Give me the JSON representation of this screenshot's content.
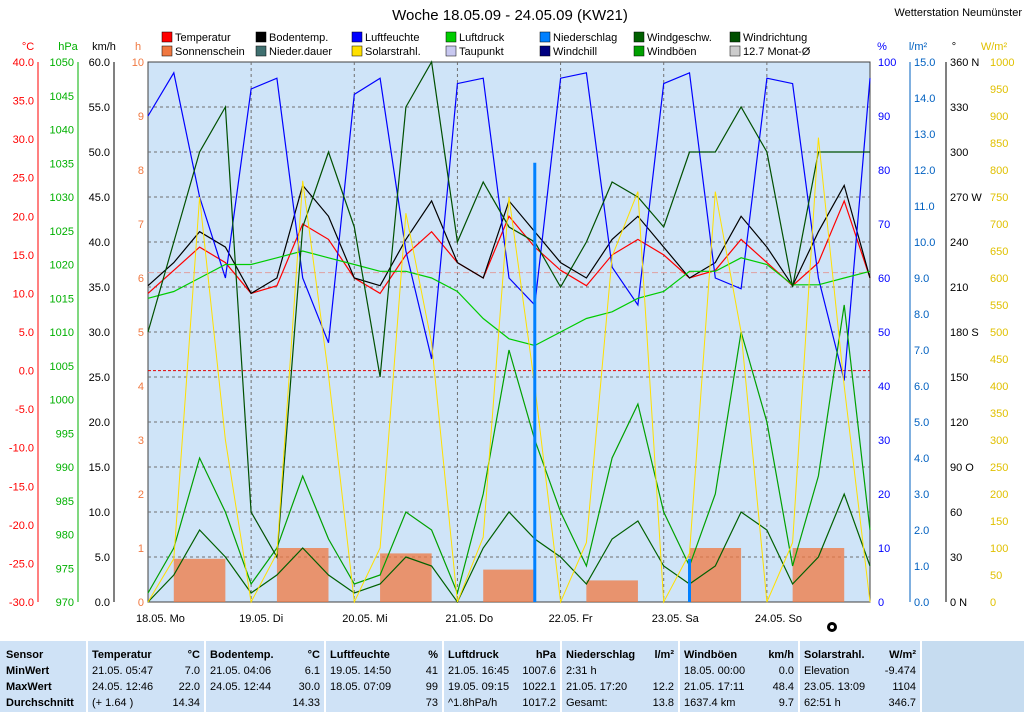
{
  "title": "Woche 18.05.09 - 24.05.09 (KW21)",
  "station": "Wetterstation Neumünster",
  "legend": {
    "row1": [
      {
        "label": "Temperatur",
        "color": "#ff0000"
      },
      {
        "label": "Bodentemp.",
        "color": "#000000"
      },
      {
        "label": "Luftfeuchte",
        "color": "#0000ff"
      },
      {
        "label": "Luftdruck",
        "color": "#00cc00"
      },
      {
        "label": "Niederschlag",
        "color": "#0080ff"
      },
      {
        "label": "Windgeschw.",
        "color": "#006000"
      },
      {
        "label": "Windrichtung",
        "color": "#005000"
      }
    ],
    "row2": [
      {
        "label": "Sonnenschein",
        "color": "#f07840"
      },
      {
        "label": "Nieder.dauer",
        "color": "#407070"
      },
      {
        "label": "Solarstrahl.",
        "color": "#ffe000"
      },
      {
        "label": "Taupunkt",
        "color": "#c8c8f0"
      },
      {
        "label": "Windchill",
        "color": "#000080"
      },
      {
        "label": "Windböen",
        "color": "#00a000"
      },
      {
        "label": "12.7 Monat-Ø",
        "color": "#cccccc"
      }
    ]
  },
  "axes": {
    "left": [
      {
        "unit": "°C",
        "color": "#ff0000",
        "ticks": [
          "40.0",
          "35.0",
          "30.0",
          "25.0",
          "20.0",
          "15.0",
          "10.0",
          "5.0",
          "0.0",
          "-5.0",
          "-10.0",
          "-15.0",
          "-20.0",
          "-25.0",
          "-30.0"
        ]
      },
      {
        "unit": "hPa",
        "color": "#00b000",
        "ticks": [
          "1050",
          "1045",
          "1040",
          "1035",
          "1030",
          "1025",
          "1020",
          "1015",
          "1010",
          "1005",
          "1000",
          "995",
          "990",
          "985",
          "980",
          "975",
          "970"
        ]
      },
      {
        "unit": "km/h",
        "color": "#000000",
        "ticks": [
          "60.0",
          "55.0",
          "50.0",
          "45.0",
          "40.0",
          "35.0",
          "30.0",
          "25.0",
          "20.0",
          "15.0",
          "10.0",
          "5.0",
          "0.0"
        ]
      },
      {
        "unit": "h",
        "color": "#f07840",
        "ticks": [
          "10",
          "9",
          "8",
          "7",
          "6",
          "5",
          "4",
          "3",
          "2",
          "1",
          "0"
        ]
      }
    ],
    "right": [
      {
        "unit": "%",
        "color": "#0000ff",
        "ticks": [
          "100",
          "90",
          "80",
          "70",
          "60",
          "50",
          "40",
          "30",
          "20",
          "10",
          "0"
        ]
      },
      {
        "unit": "l/m²",
        "color": "#0060c0",
        "ticks": [
          "15.0",
          "14.0",
          "13.0",
          "12.0",
          "11.0",
          "10.0",
          "9.0",
          "8.0",
          "7.0",
          "6.0",
          "5.0",
          "4.0",
          "3.0",
          "2.0",
          "1.0",
          "0.0"
        ]
      },
      {
        "unit": "°",
        "color": "#000000",
        "ticks": [
          "360 N",
          "330",
          "300",
          "270 W",
          "240",
          "210",
          "180 S",
          "150",
          "120",
          "90 O",
          "60",
          "30",
          "0 N"
        ]
      },
      {
        "unit": "W/m²",
        "color": "#e0c000",
        "ticks": [
          "1000",
          "950",
          "900",
          "850",
          "800",
          "750",
          "700",
          "650",
          "600",
          "550",
          "500",
          "450",
          "400",
          "350",
          "300",
          "250",
          "200",
          "150",
          "100",
          "50",
          "0"
        ]
      }
    ],
    "days": [
      "18.05. Mo",
      "19.05. Di",
      "20.05. Mi",
      "21.05. Do",
      "22.05. Fr",
      "23.05. Sa",
      "24.05. So"
    ]
  },
  "chart_data": {
    "type": "line",
    "title": "Woche 18.05.09 - 24.05.09 (KW21)",
    "x": [
      0,
      6,
      12,
      18,
      24,
      30,
      36,
      42,
      48,
      54,
      60,
      66,
      72,
      78,
      84,
      90,
      96,
      102,
      108,
      114,
      120,
      126,
      132,
      138,
      144,
      150,
      156,
      162,
      168
    ],
    "x_unit": "hours since 18.05. 00:00",
    "series": [
      {
        "name": "Temperatur",
        "unit": "°C",
        "values": [
          10,
          13,
          16,
          14,
          10,
          11,
          19,
          17,
          12,
          10,
          15,
          18,
          14,
          12,
          20,
          16,
          13,
          11,
          15,
          17,
          15,
          12,
          13,
          17,
          14,
          11,
          14,
          22,
          12
        ]
      },
      {
        "name": "Bodentemp.",
        "unit": "°C",
        "values": [
          11,
          14,
          18,
          16,
          10,
          12,
          24,
          20,
          12,
          11,
          17,
          22,
          14,
          12,
          22,
          18,
          14,
          12,
          17,
          20,
          16,
          12,
          14,
          20,
          16,
          11,
          18,
          24,
          12
        ]
      },
      {
        "name": "Luftfeuchte",
        "unit": "%",
        "values": [
          90,
          98,
          75,
          60,
          95,
          97,
          60,
          48,
          94,
          97,
          65,
          45,
          96,
          97,
          60,
          55,
          97,
          98,
          62,
          55,
          96,
          98,
          60,
          58,
          97,
          96,
          60,
          41,
          97
        ]
      },
      {
        "name": "Luftdruck",
        "unit": "hPa",
        "values": [
          1015,
          1016,
          1018,
          1020,
          1020,
          1021,
          1022,
          1021,
          1020,
          1019,
          1019,
          1018,
          1016,
          1012,
          1009,
          1008,
          1010,
          1012,
          1013,
          1015,
          1016,
          1019,
          1019,
          1021,
          1020,
          1017,
          1017,
          1018,
          1019
        ]
      },
      {
        "name": "Windgeschw.",
        "unit": "km/h",
        "values": [
          0,
          3,
          8,
          5,
          1,
          3,
          6,
          3,
          1,
          2,
          5,
          4,
          0,
          6,
          10,
          7,
          5,
          2,
          7,
          9,
          4,
          2,
          4,
          10,
          8,
          2,
          5,
          12,
          4
        ]
      },
      {
        "name": "Windböen",
        "unit": "km/h",
        "values": [
          1,
          6,
          16,
          10,
          2,
          6,
          14,
          7,
          2,
          3,
          10,
          8,
          1,
          12,
          28,
          18,
          10,
          4,
          16,
          22,
          10,
          4,
          12,
          30,
          20,
          4,
          14,
          33,
          8
        ]
      },
      {
        "name": "Windrichtung",
        "unit": "°",
        "values": [
          180,
          240,
          300,
          330,
          60,
          30,
          250,
          300,
          250,
          150,
          330,
          360,
          240,
          280,
          250,
          240,
          210,
          240,
          280,
          270,
          250,
          300,
          300,
          330,
          300,
          210,
          300,
          300,
          300
        ]
      },
      {
        "name": "Solarstrahl.",
        "unit": "W/m²",
        "values": [
          0,
          80,
          750,
          300,
          0,
          90,
          780,
          420,
          0,
          100,
          720,
          480,
          0,
          120,
          750,
          400,
          0,
          110,
          640,
          760,
          0,
          90,
          760,
          500,
          0,
          110,
          860,
          400,
          0
        ]
      },
      {
        "name": "Niederschlag",
        "unit": "l/m²",
        "values": [
          0,
          0,
          0,
          0,
          0,
          0,
          0,
          0,
          0,
          0,
          0,
          0,
          0,
          0,
          0,
          12.2,
          0,
          0,
          0,
          0,
          0,
          1.2,
          0,
          0,
          0,
          0,
          0,
          0,
          0
        ]
      }
    ],
    "sunshine_hours": {
      "name": "Sonnenschein",
      "unit": "h",
      "days": [
        0.8,
        1.0,
        0.9,
        0.6,
        0.4,
        1.0,
        1.0
      ]
    },
    "ylim_temp": [
      -30,
      40
    ],
    "ylim_pressure": [
      970,
      1050
    ],
    "ylim_humidity": [
      0,
      100
    ],
    "grid": true
  },
  "stats": {
    "row_labels": [
      "Sensor",
      "MinWert",
      "MaxWert",
      "Durchschnitt"
    ],
    "blocks": [
      {
        "title": "Temperatur",
        "unit": "°C",
        "rows": [
          [
            "21.05.  05:47",
            "7.0"
          ],
          [
            "24.05.  12:46",
            "22.0"
          ],
          [
            "(+ 1.64 )",
            "14.34"
          ]
        ]
      },
      {
        "title": "Bodentemp.",
        "unit": "°C",
        "rows": [
          [
            "21.05.  04:06",
            "6.1"
          ],
          [
            "24.05.  12:44",
            "30.0"
          ],
          [
            "",
            "14.33"
          ]
        ]
      },
      {
        "title": "Luftfeuchte",
        "unit": "%",
        "rows": [
          [
            "19.05.  14:50",
            "41"
          ],
          [
            "18.05.  07:09",
            "99"
          ],
          [
            "",
            "73"
          ]
        ]
      },
      {
        "title": "Luftdruck",
        "unit": "hPa",
        "rows": [
          [
            "21.05.  16:45",
            "1007.6"
          ],
          [
            "19.05.  09:15",
            "1022.1"
          ],
          [
            "^1.8hPa/h",
            "1017.2"
          ]
        ]
      },
      {
        "title": "Niederschlag",
        "unit": "l/m²",
        "rows": [
          [
            "2:31 h",
            ""
          ],
          [
            "21.05.  17:20",
            "12.2"
          ],
          [
            "Gesamt:",
            "13.8"
          ]
        ]
      },
      {
        "title": "Windböen",
        "unit": "km/h",
        "rows": [
          [
            "18.05.  00:00",
            "0.0"
          ],
          [
            "21.05.  17:11",
            "48.4"
          ],
          [
            "1637.4 km",
            "9.7"
          ]
        ]
      },
      {
        "title": "Solarstrahl.",
        "unit": "W/m²",
        "rows": [
          [
            "Elevation",
            "-9.474"
          ],
          [
            "23.05.  13:09",
            "1104"
          ],
          [
            "62:51 h",
            "346.7"
          ]
        ]
      }
    ]
  }
}
